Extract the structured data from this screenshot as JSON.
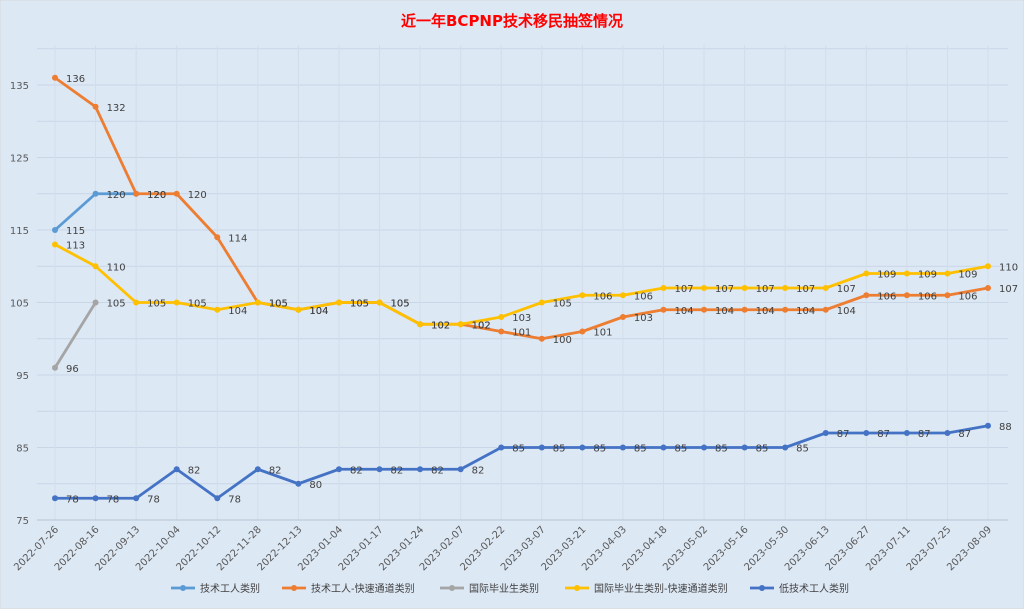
{
  "chart_data": {
    "type": "line",
    "title": "近一年BCPNP技术移民抽签情况",
    "title_color": "#ff0000",
    "background": "#dde8f5",
    "grid": true,
    "legend_position": "bottom",
    "ylim": [
      75,
      140
    ],
    "yticks": [
      75,
      85,
      95,
      105,
      115,
      125,
      135
    ],
    "categories": [
      "2022-07-26",
      "2022-08-16",
      "2022-09-13",
      "2022-10-04",
      "2022-10-12",
      "2022-11-28",
      "2022-12-13",
      "2023-01-04",
      "2023-01-17",
      "2023-01-24",
      "2023-02-07",
      "2023-02-22",
      "2023-03-07",
      "2023-03-21",
      "2023-04-03",
      "2023-04-18",
      "2023-05-02",
      "2023-05-16",
      "2023-05-30",
      "2023-06-13",
      "2023-06-27",
      "2023-07-11",
      "2023-07-25",
      "2023-08-09"
    ],
    "series": [
      {
        "name": "技术工人类别",
        "color": "#5b9bd5",
        "values": [
          115,
          120,
          120,
          null,
          null,
          null,
          null,
          null,
          null,
          null,
          null,
          null,
          null,
          null,
          null,
          null,
          null,
          null,
          null,
          null,
          null,
          null,
          null,
          null
        ],
        "labels": [
          115,
          120,
          120,
          null,
          null,
          null,
          null,
          null,
          null,
          null,
          null,
          null,
          null,
          null,
          null,
          null,
          null,
          null,
          null,
          null,
          null,
          null,
          null,
          null
        ]
      },
      {
        "name": "技术工人-快速通道类别",
        "color": "#ed7d31",
        "values": [
          136,
          132,
          120,
          120,
          114,
          105,
          104,
          105,
          105,
          102,
          102,
          101,
          100,
          101,
          103,
          104,
          104,
          104,
          104,
          104,
          106,
          106,
          106,
          107
        ],
        "labels": [
          136,
          132,
          120,
          120,
          114,
          105,
          104,
          105,
          105,
          102,
          102,
          101,
          100,
          101,
          103,
          104,
          104,
          104,
          104,
          104,
          106,
          106,
          106,
          107
        ]
      },
      {
        "name": "国际毕业生类别",
        "color": "#a5a5a5",
        "values": [
          96,
          105,
          null,
          null,
          null,
          null,
          null,
          null,
          null,
          null,
          null,
          null,
          null,
          null,
          null,
          null,
          null,
          null,
          null,
          null,
          null,
          null,
          null,
          null
        ],
        "labels": [
          96,
          105,
          null,
          null,
          null,
          null,
          null,
          null,
          null,
          null,
          null,
          null,
          null,
          null,
          null,
          null,
          null,
          null,
          null,
          null,
          null,
          null,
          null,
          null
        ]
      },
      {
        "name": "国际毕业生类别-快速通道类别",
        "color": "#ffc000",
        "values": [
          113,
          110,
          105,
          105,
          104,
          105,
          104,
          105,
          105,
          102,
          102,
          103,
          105,
          106,
          106,
          107,
          107,
          107,
          107,
          107,
          109,
          109,
          109,
          110
        ],
        "labels": [
          113,
          110,
          105,
          105,
          104,
          105,
          104,
          105,
          105,
          102,
          102,
          103,
          105,
          106,
          106,
          107,
          107,
          107,
          107,
          107,
          109,
          109,
          109,
          110
        ]
      },
      {
        "name": "低技术工人类别",
        "color": "#4472c4",
        "values": [
          78,
          78,
          78,
          82,
          78,
          82,
          80,
          82,
          82,
          82,
          82,
          85,
          85,
          85,
          85,
          85,
          85,
          85,
          85,
          87,
          87,
          87,
          87,
          88
        ],
        "labels": [
          78,
          78,
          78,
          82,
          78,
          82,
          80,
          82,
          82,
          82,
          82,
          85,
          85,
          85,
          85,
          85,
          85,
          85,
          85,
          87,
          87,
          87,
          87,
          88
        ]
      }
    ]
  }
}
